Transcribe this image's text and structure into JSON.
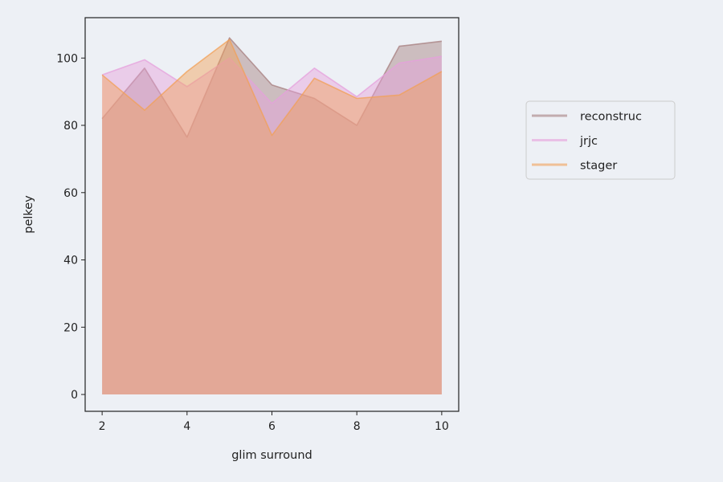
{
  "chart_data": {
    "type": "area",
    "title": "",
    "xlabel": "glim surround",
    "ylabel": "pelkey",
    "x": [
      2,
      3,
      4,
      5,
      6,
      7,
      8,
      9,
      10
    ],
    "xlim": [
      1.6,
      10.4
    ],
    "ylim": [
      -5,
      112
    ],
    "xticks": [
      2,
      4,
      6,
      8,
      10
    ],
    "yticks": [
      0,
      20,
      40,
      60,
      80,
      100
    ],
    "grid": false,
    "legend_position": "right, outside plot",
    "series": [
      {
        "name": "reconstruc",
        "color": "#a57e7e",
        "values": [
          82,
          97,
          76.5,
          106,
          92,
          88,
          80,
          103.5,
          105
        ]
      },
      {
        "name": "jrjc",
        "color": "#e6a0dc",
        "values": [
          95,
          99.5,
          91.5,
          100,
          86.5,
          97,
          88.5,
          98.5,
          100.5
        ]
      },
      {
        "name": "stager",
        "color": "#f2a057",
        "values": [
          95,
          84.5,
          96,
          105.5,
          77,
          94,
          88,
          89,
          96
        ]
      }
    ]
  }
}
